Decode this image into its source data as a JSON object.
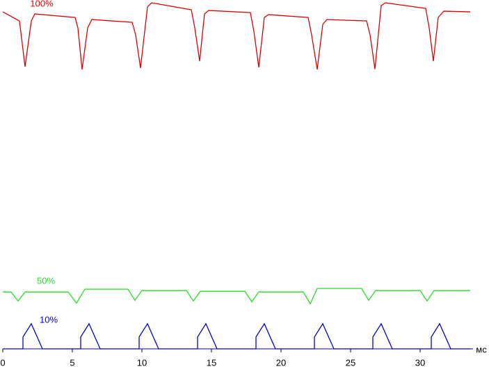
{
  "chart_data": {
    "type": "line",
    "xlabel": "мс",
    "xlim": [
      0,
      33.8
    ],
    "xticks": [
      0,
      5,
      10,
      15,
      20,
      25,
      30
    ],
    "ylim": [
      0,
      100
    ],
    "series": [
      {
        "name": "100%",
        "color": "#dd0000",
        "x": [
          0,
          1.2,
          1.6,
          2.05,
          2.3,
          5.2,
          5.4,
          5.7,
          6.1,
          6.4,
          9.3,
          9.55,
          9.9,
          10.4,
          10.7,
          13.55,
          13.8,
          14.15,
          14.5,
          14.8,
          17.8,
          18.05,
          18.4,
          18.8,
          19.1,
          21.95,
          22.2,
          22.6,
          23.0,
          23.3,
          26.15,
          26.4,
          26.75,
          27.2,
          27.5,
          30.4,
          30.65,
          30.95,
          31.3,
          31.7,
          33.6
        ],
        "values": [
          96.6,
          94.0,
          80.9,
          94.0,
          96.0,
          95.0,
          92.0,
          80.1,
          92.0,
          94.4,
          93.6,
          90.0,
          80.5,
          98.0,
          99.2,
          97.2,
          92.0,
          82.5,
          96.0,
          97.0,
          96.4,
          91.0,
          80.7,
          95.0,
          95.8,
          95.0,
          90.0,
          80.1,
          93.0,
          94.4,
          94.0,
          90.0,
          80.2,
          98.4,
          99.2,
          97.6,
          92.0,
          82.5,
          95.0,
          96.8,
          96.6
        ]
      },
      {
        "name": "50%",
        "color": "#22dd22",
        "x": [
          0,
          0.6,
          1.1,
          1.6,
          4.7,
          5.3,
          5.9,
          9.0,
          9.5,
          10.0,
          13.2,
          13.7,
          14.2,
          17.4,
          17.9,
          18.4,
          21.6,
          22.1,
          22.6,
          25.8,
          26.3,
          26.8,
          30.0,
          30.5,
          31.0,
          33.6
        ],
        "values": [
          16.3,
          16.3,
          13.7,
          16.3,
          16.3,
          13.1,
          17.1,
          17.1,
          13.9,
          16.7,
          16.7,
          13.7,
          16.5,
          16.5,
          13.5,
          16.3,
          16.3,
          12.9,
          17.3,
          17.3,
          13.9,
          16.7,
          16.7,
          13.7,
          16.7,
          16.7
        ]
      },
      {
        "name": "10%",
        "color": "#0000cc",
        "x": [
          0,
          1.45,
          1.45,
          2.05,
          2.85,
          5.6,
          5.6,
          6.2,
          7.0,
          9.8,
          9.8,
          10.4,
          11.2,
          14.0,
          14.0,
          14.6,
          15.4,
          18.2,
          18.2,
          18.8,
          19.6,
          22.4,
          22.4,
          23.0,
          23.8,
          26.6,
          26.6,
          27.2,
          28.0,
          30.8,
          30.8,
          31.4,
          32.2,
          33.6
        ],
        "values": [
          0,
          0,
          3.4,
          7.2,
          0,
          0,
          3.4,
          7.2,
          0,
          0,
          3.4,
          7.2,
          0,
          0,
          3.4,
          7.2,
          0,
          0,
          3.4,
          7.2,
          0,
          0,
          3.4,
          7.2,
          0,
          0,
          3.4,
          7.2,
          0,
          0,
          3.4,
          7.2,
          0,
          0
        ]
      }
    ]
  }
}
